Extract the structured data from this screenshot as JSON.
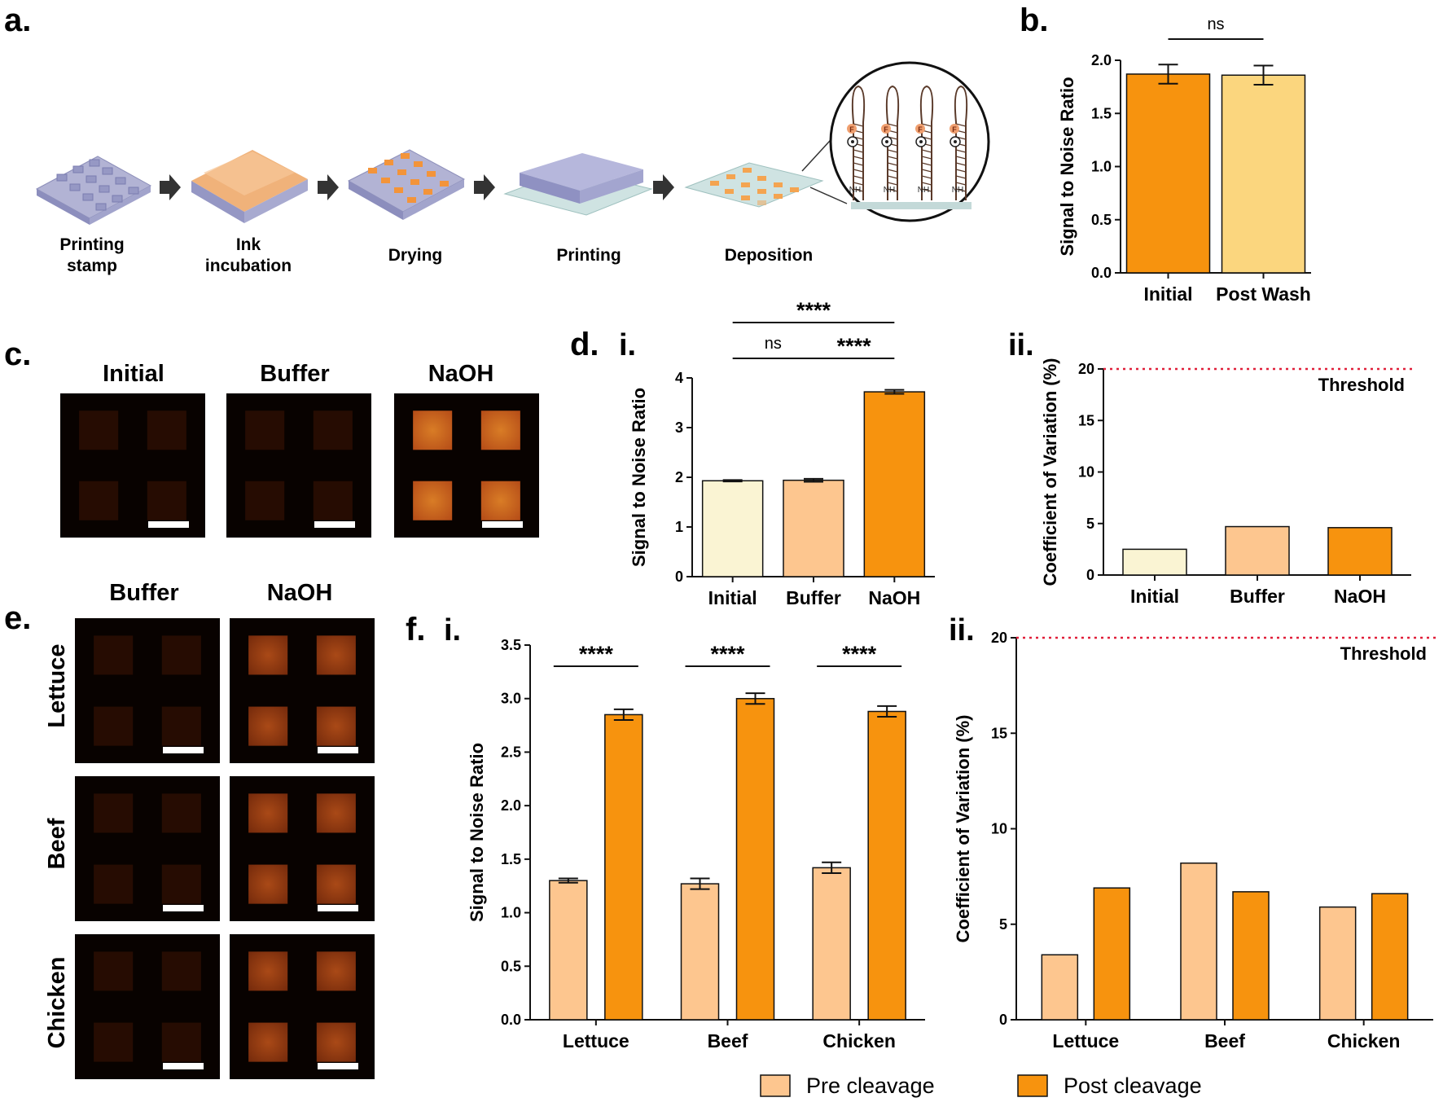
{
  "panel_labels": {
    "a": "a.",
    "b": "b.",
    "c": "c.",
    "d": "d.",
    "e": "e.",
    "f": "f.",
    "d_i": "i.",
    "d_ii": "ii.",
    "f_i": "i.",
    "f_ii": "ii."
  },
  "workflow": {
    "steps": [
      {
        "lines": [
          "Printing",
          "stamp"
        ]
      },
      {
        "lines": [
          "Ink",
          "incubation"
        ]
      },
      {
        "lines": [
          "Drying"
        ]
      },
      {
        "lines": [
          "Printing"
        ]
      },
      {
        "lines": [
          "Deposition"
        ]
      }
    ],
    "inset_labels": {
      "fluor": "F",
      "quench": "Q",
      "amide": "NH"
    }
  },
  "panel_c": {
    "titles": [
      "Initial",
      "Buffer",
      "NaOH"
    ],
    "colors": {
      "dim": "#2a0d02",
      "bright": "#e87a1e",
      "background": "#080200"
    }
  },
  "panel_e": {
    "col_titles": [
      "Buffer",
      "NaOH"
    ],
    "row_titles": [
      "Lettuce",
      "Beef",
      "Chicken"
    ]
  },
  "chart_data": [
    {
      "id": "b",
      "type": "bar",
      "categories": [
        "Initial",
        "Post Wash"
      ],
      "values": [
        1.87,
        1.86
      ],
      "errors": [
        0.09,
        0.09
      ],
      "colors": [
        "#f7930e",
        "#fbd67e"
      ],
      "ylabel": "Signal to Noise Ratio",
      "ylim": [
        0,
        2.0
      ],
      "yticks": [
        "0.0",
        "0.5",
        "1.0",
        "1.5",
        "2.0"
      ],
      "annotations": [
        {
          "text": "ns",
          "between": [
            0,
            1
          ]
        }
      ]
    },
    {
      "id": "d_i",
      "type": "bar",
      "categories": [
        "Initial",
        "Buffer",
        "NaOH"
      ],
      "values": [
        1.93,
        1.94,
        3.72
      ],
      "errors": [
        0.015,
        0.03,
        0.04
      ],
      "colors": [
        "#faf4d3",
        "#fdc68f",
        "#f7930e"
      ],
      "ylabel": "Signal to Noise Ratio",
      "ylim": [
        0,
        4
      ],
      "yticks": [
        "0",
        "1",
        "2",
        "3",
        "4"
      ],
      "annotations": [
        {
          "text": "ns",
          "between": [
            0,
            1
          ]
        },
        {
          "text": "****",
          "between": [
            1,
            2
          ]
        },
        {
          "text": "****",
          "between": [
            0,
            2
          ]
        }
      ]
    },
    {
      "id": "d_ii",
      "type": "bar",
      "categories": [
        "Initial",
        "Buffer",
        "NaOH"
      ],
      "values": [
        2.5,
        4.7,
        4.6
      ],
      "colors": [
        "#faf4d3",
        "#fdc68f",
        "#f7930e"
      ],
      "ylabel": "Coefficient of Variation (%)",
      "ylim": [
        0,
        20
      ],
      "yticks": [
        "0",
        "5",
        "10",
        "15",
        "20"
      ],
      "threshold": 20,
      "threshold_label": "Threshold",
      "threshold_color": "#e0203a"
    },
    {
      "id": "f_i",
      "type": "bar",
      "categories": [
        "Lettuce",
        "Beef",
        "Chicken"
      ],
      "series": [
        {
          "name": "Pre cleavage",
          "color": "#fdc68f",
          "values": [
            1.3,
            1.27,
            1.42
          ],
          "errors": [
            0.02,
            0.05,
            0.05
          ]
        },
        {
          "name": "Post cleavage",
          "color": "#f7930e",
          "values": [
            2.85,
            3.0,
            2.88
          ],
          "errors": [
            0.05,
            0.05,
            0.05
          ]
        }
      ],
      "ylabel": "Signal to Noise Ratio",
      "ylim": [
        0,
        3.5
      ],
      "yticks": [
        "0.0",
        "0.5",
        "1.0",
        "1.5",
        "2.0",
        "2.5",
        "3.0",
        "3.5"
      ],
      "annotations": [
        {
          "text": "****",
          "group": 0
        },
        {
          "text": "****",
          "group": 1
        },
        {
          "text": "****",
          "group": 2
        }
      ]
    },
    {
      "id": "f_ii",
      "type": "bar",
      "categories": [
        "Lettuce",
        "Beef",
        "Chicken"
      ],
      "series": [
        {
          "name": "Pre cleavage",
          "color": "#fdc68f",
          "values": [
            3.4,
            8.2,
            5.9
          ]
        },
        {
          "name": "Post cleavage",
          "color": "#f7930e",
          "values": [
            6.9,
            6.7,
            6.6
          ]
        }
      ],
      "ylabel": "Coefficient of Variation (%)",
      "ylim": [
        0,
        20
      ],
      "yticks": [
        "0",
        "5",
        "10",
        "15",
        "20"
      ],
      "threshold": 20,
      "threshold_label": "Threshold",
      "threshold_color": "#e0203a"
    }
  ],
  "legend": {
    "items": [
      {
        "label": "Pre cleavage",
        "color": "#fdc68f"
      },
      {
        "label": "Post cleavage",
        "color": "#f7930e"
      }
    ]
  }
}
